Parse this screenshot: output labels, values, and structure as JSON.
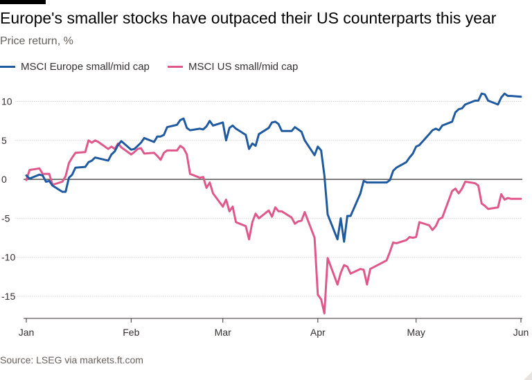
{
  "title": "Europe's smaller stocks have outpaced their US counterparts this year",
  "subtitle": "Price return, %",
  "source": "Source: LSEG via markets.ft.com",
  "colors": {
    "europe": "#1f5aa0",
    "us": "#e0588b",
    "grid": "#d9d4cf",
    "zero": "#33302e",
    "text": "#33302e"
  },
  "chart_data": {
    "type": "line",
    "title": "Europe's smaller stocks have outpaced their US counterparts this year",
    "subtitle": "Price return, %",
    "xlabel": "",
    "ylabel": "Price return, %",
    "ylim": [
      -18,
      12
    ],
    "yticks": [
      10,
      5,
      0,
      -5,
      -10,
      -15
    ],
    "ytick_labels": [
      "10",
      "5",
      "0",
      "-5",
      "-10",
      "-15"
    ],
    "xticks": [
      {
        "date": "2025-01-02",
        "label": "Jan"
      },
      {
        "date": "2025-02-03",
        "label": "Feb"
      },
      {
        "date": "2025-03-03",
        "label": "Mar"
      },
      {
        "date": "2025-04-01",
        "label": "Apr"
      },
      {
        "date": "2025-05-01",
        "label": "May"
      },
      {
        "date": "2025-06-02",
        "label": "Jun"
      }
    ],
    "xlim": [
      "2025-01-02",
      "2025-06-02"
    ],
    "grid": true,
    "legend_position": "top-left",
    "series": [
      {
        "name": "MSCI Europe small/mid cap",
        "color": "#1f5aa0",
        "points": [
          [
            "2025-01-02",
            0.5
          ],
          [
            "2025-01-03",
            0.1
          ],
          [
            "2025-01-06",
            0.6
          ],
          [
            "2025-01-07",
            0.5
          ],
          [
            "2025-01-08",
            -0.3
          ],
          [
            "2025-01-09",
            -0.2
          ],
          [
            "2025-01-10",
            -0.8
          ],
          [
            "2025-01-13",
            -1.6
          ],
          [
            "2025-01-14",
            -1.6
          ],
          [
            "2025-01-15",
            0.2
          ],
          [
            "2025-01-16",
            0.6
          ],
          [
            "2025-01-17",
            1.5
          ],
          [
            "2025-01-20",
            1.6
          ],
          [
            "2025-01-21",
            2.2
          ],
          [
            "2025-01-22",
            2.4
          ],
          [
            "2025-01-23",
            2.8
          ],
          [
            "2025-01-24",
            2.7
          ],
          [
            "2025-01-27",
            2.4
          ],
          [
            "2025-01-28",
            3.2
          ],
          [
            "2025-01-29",
            3.6
          ],
          [
            "2025-01-30",
            4.4
          ],
          [
            "2025-01-31",
            4.9
          ],
          [
            "2025-02-03",
            3.8
          ],
          [
            "2025-02-04",
            3.9
          ],
          [
            "2025-02-05",
            4.3
          ],
          [
            "2025-02-06",
            4.7
          ],
          [
            "2025-02-07",
            5.3
          ],
          [
            "2025-02-10",
            4.8
          ],
          [
            "2025-02-11",
            5.5
          ],
          [
            "2025-02-12",
            5.5
          ],
          [
            "2025-02-13",
            5.7
          ],
          [
            "2025-02-14",
            6.7
          ],
          [
            "2025-02-17",
            7.0
          ],
          [
            "2025-02-18",
            7.6
          ],
          [
            "2025-02-19",
            7.8
          ],
          [
            "2025-02-20",
            6.6
          ],
          [
            "2025-02-21",
            6.3
          ],
          [
            "2025-02-24",
            6.5
          ],
          [
            "2025-02-25",
            6.4
          ],
          [
            "2025-02-26",
            6.8
          ],
          [
            "2025-02-27",
            7.5
          ],
          [
            "2025-02-28",
            6.9
          ],
          [
            "2025-03-03",
            7.3
          ],
          [
            "2025-03-04",
            5.0
          ],
          [
            "2025-03-05",
            6.6
          ],
          [
            "2025-03-06",
            6.9
          ],
          [
            "2025-03-07",
            6.5
          ],
          [
            "2025-03-10",
            5.7
          ],
          [
            "2025-03-11",
            3.9
          ],
          [
            "2025-03-12",
            4.6
          ],
          [
            "2025-03-13",
            4.3
          ],
          [
            "2025-03-14",
            5.8
          ],
          [
            "2025-03-17",
            6.6
          ],
          [
            "2025-03-18",
            7.3
          ],
          [
            "2025-03-19",
            7.4
          ],
          [
            "2025-03-20",
            7.1
          ],
          [
            "2025-03-21",
            6.2
          ],
          [
            "2025-03-24",
            6.2
          ],
          [
            "2025-03-25",
            6.7
          ],
          [
            "2025-03-26",
            6.4
          ],
          [
            "2025-03-27",
            6.1
          ],
          [
            "2025-03-28",
            5.0
          ],
          [
            "2025-03-31",
            3.1
          ],
          [
            "2025-04-01",
            4.2
          ],
          [
            "2025-04-02",
            3.7
          ],
          [
            "2025-04-03",
            0.5
          ],
          [
            "2025-04-04",
            -4.5
          ],
          [
            "2025-04-07",
            -7.7
          ],
          [
            "2025-04-08",
            -5.0
          ],
          [
            "2025-04-09",
            -8.0
          ],
          [
            "2025-04-10",
            -4.7
          ],
          [
            "2025-04-11",
            -4.7
          ],
          [
            "2025-04-14",
            -1.8
          ],
          [
            "2025-04-15",
            -0.2
          ],
          [
            "2025-04-16",
            -0.4
          ],
          [
            "2025-04-17",
            -0.4
          ],
          [
            "2025-04-22",
            -0.4
          ],
          [
            "2025-04-23",
            -0.1
          ],
          [
            "2025-04-24",
            1.1
          ],
          [
            "2025-04-25",
            1.5
          ],
          [
            "2025-04-28",
            2.2
          ],
          [
            "2025-04-29",
            2.8
          ],
          [
            "2025-04-30",
            3.3
          ],
          [
            "2025-05-01",
            4.2
          ],
          [
            "2025-05-02",
            4.4
          ],
          [
            "2025-05-05",
            5.8
          ],
          [
            "2025-05-06",
            6.3
          ],
          [
            "2025-05-07",
            6.5
          ],
          [
            "2025-05-08",
            6.3
          ],
          [
            "2025-05-09",
            6.9
          ],
          [
            "2025-05-12",
            7.4
          ],
          [
            "2025-05-13",
            8.6
          ],
          [
            "2025-05-14",
            9.0
          ],
          [
            "2025-05-15",
            9.1
          ],
          [
            "2025-05-16",
            9.6
          ],
          [
            "2025-05-19",
            10.1
          ],
          [
            "2025-05-20",
            10.1
          ],
          [
            "2025-05-21",
            11.0
          ],
          [
            "2025-05-22",
            10.9
          ],
          [
            "2025-05-23",
            10.1
          ],
          [
            "2025-05-26",
            9.6
          ],
          [
            "2025-05-27",
            10.5
          ],
          [
            "2025-05-28",
            11.0
          ],
          [
            "2025-05-29",
            10.7
          ],
          [
            "2025-05-30",
            10.7
          ],
          [
            "2025-06-02",
            10.6
          ]
        ]
      },
      {
        "name": "MSCI US small/mid cap",
        "color": "#e0588b",
        "points": [
          [
            "2025-01-02",
            -0.1
          ],
          [
            "2025-01-03",
            1.2
          ],
          [
            "2025-01-06",
            1.4
          ],
          [
            "2025-01-07",
            0.7
          ],
          [
            "2025-01-08",
            0.7
          ],
          [
            "2025-01-09",
            0.7
          ],
          [
            "2025-01-10",
            -0.7
          ],
          [
            "2025-01-13",
            -0.3
          ],
          [
            "2025-01-14",
            0.4
          ],
          [
            "2025-01-15",
            2.1
          ],
          [
            "2025-01-16",
            2.8
          ],
          [
            "2025-01-17",
            3.4
          ],
          [
            "2025-01-20",
            3.5
          ],
          [
            "2025-01-21",
            5.0
          ],
          [
            "2025-01-22",
            4.7
          ],
          [
            "2025-01-23",
            5.0
          ],
          [
            "2025-01-24",
            4.8
          ],
          [
            "2025-01-27",
            3.9
          ],
          [
            "2025-01-28",
            4.2
          ],
          [
            "2025-01-29",
            3.9
          ],
          [
            "2025-01-30",
            4.6
          ],
          [
            "2025-01-31",
            4.1
          ],
          [
            "2025-02-03",
            3.2
          ],
          [
            "2025-02-04",
            3.5
          ],
          [
            "2025-02-05",
            3.9
          ],
          [
            "2025-02-06",
            4.0
          ],
          [
            "2025-02-07",
            3.3
          ],
          [
            "2025-02-10",
            3.4
          ],
          [
            "2025-02-11",
            3.0
          ],
          [
            "2025-02-12",
            2.5
          ],
          [
            "2025-02-13",
            3.4
          ],
          [
            "2025-02-14",
            3.7
          ],
          [
            "2025-02-17",
            3.7
          ],
          [
            "2025-02-18",
            4.3
          ],
          [
            "2025-02-19",
            4.0
          ],
          [
            "2025-02-20",
            3.2
          ],
          [
            "2025-02-21",
            0.7
          ],
          [
            "2025-02-24",
            0.2
          ],
          [
            "2025-02-25",
            0.3
          ],
          [
            "2025-02-26",
            -1.1
          ],
          [
            "2025-02-27",
            -0.4
          ],
          [
            "2025-02-28",
            -1.8
          ],
          [
            "2025-03-03",
            -3.5
          ],
          [
            "2025-03-04",
            -2.6
          ],
          [
            "2025-03-05",
            -4.1
          ],
          [
            "2025-03-06",
            -3.5
          ],
          [
            "2025-03-07",
            -5.5
          ],
          [
            "2025-03-10",
            -6.0
          ],
          [
            "2025-03-11",
            -7.7
          ],
          [
            "2025-03-12",
            -5.5
          ],
          [
            "2025-03-13",
            -4.4
          ],
          [
            "2025-03-14",
            -5.0
          ],
          [
            "2025-03-17",
            -4.0
          ],
          [
            "2025-03-18",
            -4.8
          ],
          [
            "2025-03-19",
            -3.6
          ],
          [
            "2025-03-20",
            -4.1
          ],
          [
            "2025-03-21",
            -4.1
          ],
          [
            "2025-03-24",
            -4.9
          ],
          [
            "2025-03-25",
            -5.7
          ],
          [
            "2025-03-26",
            -5.4
          ],
          [
            "2025-03-27",
            -5.3
          ],
          [
            "2025-03-28",
            -4.2
          ],
          [
            "2025-03-31",
            -7.5
          ],
          [
            "2025-04-01",
            -14.8
          ],
          [
            "2025-04-02",
            -15.4
          ],
          [
            "2025-04-03",
            -17.2
          ],
          [
            "2025-04-04",
            -10.1
          ],
          [
            "2025-04-07",
            -13.5
          ],
          [
            "2025-04-08",
            -12.0
          ],
          [
            "2025-04-09",
            -11.0
          ],
          [
            "2025-04-10",
            -11.2
          ],
          [
            "2025-04-11",
            -12.1
          ],
          [
            "2025-04-14",
            -11.5
          ],
          [
            "2025-04-15",
            -11.6
          ],
          [
            "2025-04-16",
            -13.5
          ],
          [
            "2025-04-17",
            -11.5
          ],
          [
            "2025-04-22",
            -10.4
          ],
          [
            "2025-04-23",
            -9.3
          ],
          [
            "2025-04-24",
            -8.1
          ],
          [
            "2025-04-25",
            -8.2
          ],
          [
            "2025-04-28",
            -7.8
          ],
          [
            "2025-04-29",
            -7.4
          ],
          [
            "2025-04-30",
            -7.5
          ],
          [
            "2025-05-01",
            -7.4
          ],
          [
            "2025-05-02",
            -5.5
          ],
          [
            "2025-05-05",
            -5.9
          ],
          [
            "2025-05-06",
            -6.5
          ],
          [
            "2025-05-07",
            -6.0
          ],
          [
            "2025-05-08",
            -5.1
          ],
          [
            "2025-05-09",
            -4.9
          ],
          [
            "2025-05-12",
            -1.5
          ],
          [
            "2025-05-13",
            -1.2
          ],
          [
            "2025-05-14",
            -1.8
          ],
          [
            "2025-05-15",
            -1.2
          ],
          [
            "2025-05-16",
            -0.3
          ],
          [
            "2025-05-19",
            -0.5
          ],
          [
            "2025-05-20",
            -0.8
          ],
          [
            "2025-05-21",
            -3.1
          ],
          [
            "2025-05-22",
            -3.4
          ],
          [
            "2025-05-23",
            -3.8
          ],
          [
            "2025-05-26",
            -3.6
          ],
          [
            "2025-05-27",
            -1.9
          ],
          [
            "2025-05-28",
            -2.6
          ],
          [
            "2025-05-29",
            -2.4
          ],
          [
            "2025-05-30",
            -2.5
          ],
          [
            "2025-06-02",
            -2.5
          ]
        ]
      }
    ]
  }
}
